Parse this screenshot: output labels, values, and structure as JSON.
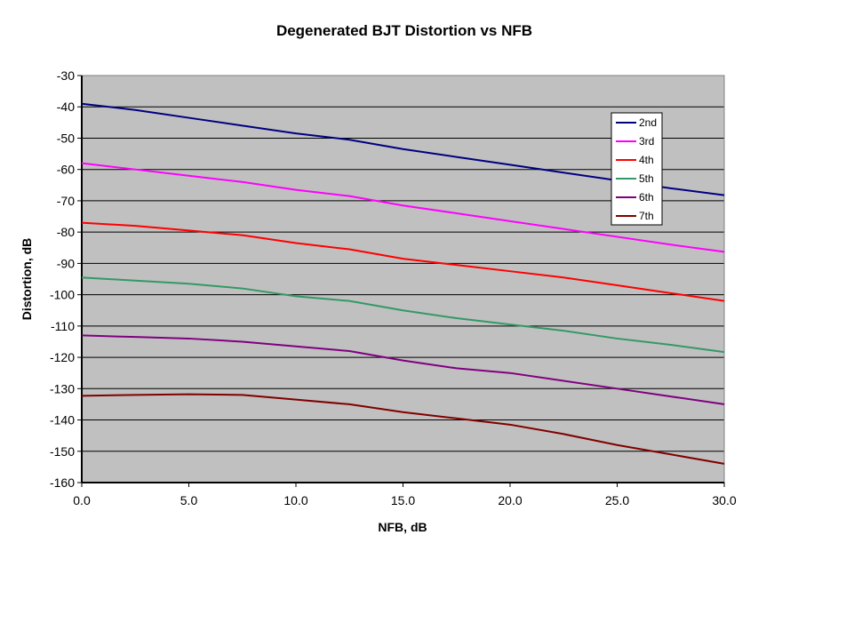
{
  "chart_data": {
    "type": "line",
    "title": "Degenerated BJT Distortion vs NFB",
    "xlabel": "NFB, dB",
    "ylabel": "Distortion, dB",
    "xlim": [
      0,
      30
    ],
    "ylim": [
      -160,
      -30
    ],
    "xticks": [
      "0.0",
      "5.0",
      "10.0",
      "15.0",
      "20.0",
      "25.0",
      "30.0"
    ],
    "yticks": [
      "-30",
      "-40",
      "-50",
      "-60",
      "-70",
      "-80",
      "-90",
      "-100",
      "-110",
      "-120",
      "-130",
      "-140",
      "-150",
      "-160"
    ],
    "grid": true,
    "legend_position": "top-right",
    "x": [
      0,
      2.5,
      5,
      7.5,
      10,
      12.5,
      15,
      17.5,
      20,
      22.5,
      25,
      27.5,
      30
    ],
    "series": [
      {
        "name": "2nd",
        "color": "#000080",
        "values": [
          -39,
          -41,
          -43.5,
          -46,
          -48.5,
          -50.5,
          -53.5,
          -56,
          -58.5,
          -61,
          -63.5,
          -66,
          -68.2
        ]
      },
      {
        "name": "3rd",
        "color": "#FF00FF",
        "values": [
          -58,
          -60,
          -62,
          -64,
          -66.5,
          -68.5,
          -71.5,
          -74,
          -76.5,
          -79,
          -81.5,
          -84,
          -86.3
        ]
      },
      {
        "name": "4th",
        "color": "#FF0000",
        "values": [
          -77,
          -78,
          -79.5,
          -81,
          -83.5,
          -85.5,
          -88.5,
          -90.5,
          -92.5,
          -94.5,
          -97,
          -99.5,
          -102
        ]
      },
      {
        "name": "5th",
        "color": "#339966",
        "values": [
          -94.5,
          -95.5,
          -96.5,
          -98,
          -100.5,
          -102,
          -105,
          -107.5,
          -109.5,
          -111.5,
          -114,
          -116,
          -118.3
        ]
      },
      {
        "name": "6th",
        "color": "#800080",
        "values": [
          -113,
          -113.5,
          -114,
          -115,
          -116.5,
          -118,
          -121,
          -123.5,
          -125,
          -127.5,
          -130,
          -132.5,
          -135
        ]
      },
      {
        "name": "7th",
        "color": "#800000",
        "values": [
          -132.3,
          -132,
          -131.8,
          -132,
          -133.5,
          -135,
          -137.5,
          -139.5,
          -141.5,
          -144.5,
          -148,
          -151,
          -154
        ]
      }
    ]
  }
}
